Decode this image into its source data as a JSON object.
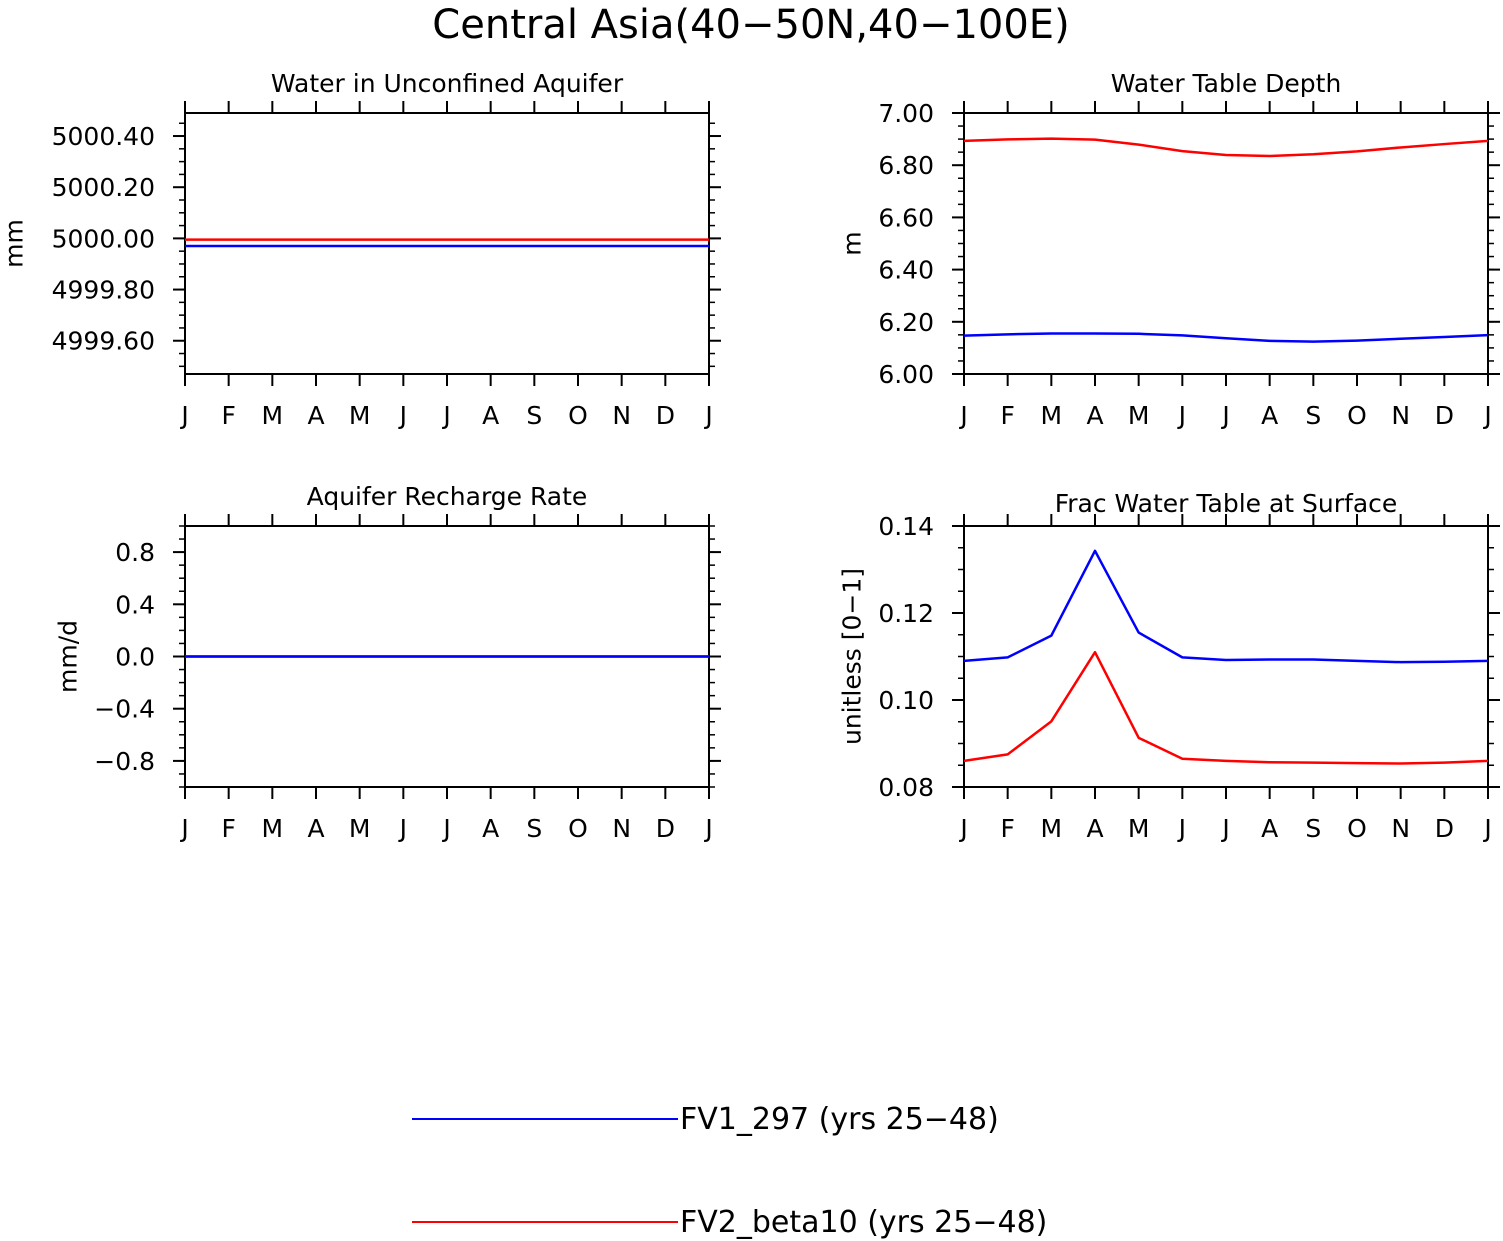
{
  "figure": {
    "title": "Central Asia(40−50N,40−100E)"
  },
  "legend": [
    {
      "name": "FV1_297 (yrs 25−48)",
      "color": "#0000ff"
    },
    {
      "name": "FV2_beta10 (yrs 25−48)",
      "color": "#ff0000"
    }
  ],
  "chart_data": [
    {
      "type": "line",
      "title": "Water in Unconfined Aquifer",
      "ylabel": "mm",
      "xlabel": "",
      "categories": [
        "J",
        "F",
        "M",
        "A",
        "M",
        "J",
        "J",
        "A",
        "S",
        "O",
        "N",
        "D",
        "J"
      ],
      "ylim": [
        4999.47,
        5000.49
      ],
      "yticks": [
        4999.6,
        4999.8,
        5000.0,
        5000.2,
        5000.4
      ],
      "ytick_labels": [
        "4999.60",
        "4999.80",
        "5000.00",
        "5000.20",
        "5000.40"
      ],
      "minor_step": 0.05,
      "series": [
        {
          "name": "FV1_297 (yrs 25−48)",
          "color": "#0000ff",
          "values": [
            4999.97,
            4999.97,
            4999.97,
            4999.97,
            4999.97,
            4999.97,
            4999.97,
            4999.97,
            4999.97,
            4999.97,
            4999.97,
            4999.97,
            4999.97
          ]
        },
        {
          "name": "FV2_beta10 (yrs 25−48)",
          "color": "#ff0000",
          "values": [
            4999.995,
            4999.995,
            4999.995,
            4999.995,
            4999.995,
            4999.995,
            4999.995,
            4999.995,
            4999.995,
            4999.995,
            4999.995,
            4999.995,
            4999.995
          ]
        }
      ]
    },
    {
      "type": "line",
      "title": "Water Table Depth",
      "ylabel": "m",
      "xlabel": "",
      "categories": [
        "J",
        "F",
        "M",
        "A",
        "M",
        "J",
        "J",
        "A",
        "S",
        "O",
        "N",
        "D",
        "J"
      ],
      "ylim": [
        6.0,
        7.0
      ],
      "yticks": [
        6.0,
        6.2,
        6.4,
        6.6,
        6.8,
        7.0
      ],
      "ytick_labels": [
        "6.00",
        "6.20",
        "6.40",
        "6.60",
        "6.80",
        "7.00"
      ],
      "minor_step": 0.05,
      "series": [
        {
          "name": "FV1_297 (yrs 25−48)",
          "color": "#0000ff",
          "values": [
            6.147,
            6.152,
            6.155,
            6.155,
            6.154,
            6.148,
            6.137,
            6.127,
            6.124,
            6.128,
            6.135,
            6.142,
            6.149
          ]
        },
        {
          "name": "FV2_beta10 (yrs 25−48)",
          "color": "#ff0000",
          "values": [
            6.893,
            6.899,
            6.902,
            6.898,
            6.879,
            6.854,
            6.839,
            6.835,
            6.842,
            6.853,
            6.868,
            6.881,
            6.893
          ]
        }
      ]
    },
    {
      "type": "line",
      "title": "Aquifer Recharge Rate",
      "ylabel": "mm/d",
      "xlabel": "",
      "categories": [
        "J",
        "F",
        "M",
        "A",
        "M",
        "J",
        "J",
        "A",
        "S",
        "O",
        "N",
        "D",
        "J"
      ],
      "ylim": [
        -1.0,
        1.0
      ],
      "yticks": [
        -0.8,
        -0.4,
        0.0,
        0.4,
        0.8
      ],
      "ytick_labels": [
        "−0.8",
        "−0.4",
        "0.0",
        "0.4",
        "0.8"
      ],
      "minor_step": 0.1,
      "series": [
        {
          "name": "FV2_beta10 (yrs 25−48)",
          "color": "#ff0000",
          "values": [
            0,
            0,
            0,
            0,
            0,
            0,
            0,
            0,
            0,
            0,
            0,
            0,
            0
          ]
        },
        {
          "name": "FV1_297 (yrs 25−48)",
          "color": "#0000ff",
          "values": [
            0,
            0,
            0,
            0,
            0,
            0,
            0,
            0,
            0,
            0,
            0,
            0,
            0
          ]
        }
      ]
    },
    {
      "type": "line",
      "title": "Frac Water Table at Surface",
      "ylabel": "unitless [0−1]",
      "xlabel": "",
      "categories": [
        "J",
        "F",
        "M",
        "A",
        "M",
        "J",
        "J",
        "A",
        "S",
        "O",
        "N",
        "D",
        "J"
      ],
      "ylim": [
        0.08,
        0.14
      ],
      "yticks": [
        0.08,
        0.1,
        0.12,
        0.14
      ],
      "ytick_labels": [
        "0.08",
        "0.10",
        "0.12",
        "0.14"
      ],
      "minor_step": 0.005,
      "series": [
        {
          "name": "FV1_297 (yrs 25−48)",
          "color": "#0000ff",
          "values": [
            0.109,
            0.1098,
            0.1148,
            0.1343,
            0.1155,
            0.1098,
            0.1092,
            0.1093,
            0.1093,
            0.109,
            0.1087,
            0.1088,
            0.109
          ]
        },
        {
          "name": "FV2_beta10 (yrs 25−48)",
          "color": "#ff0000",
          "values": [
            0.086,
            0.0875,
            0.0951,
            0.111,
            0.0913,
            0.0865,
            0.086,
            0.0857,
            0.0856,
            0.0855,
            0.0854,
            0.0856,
            0.086
          ]
        }
      ]
    }
  ]
}
